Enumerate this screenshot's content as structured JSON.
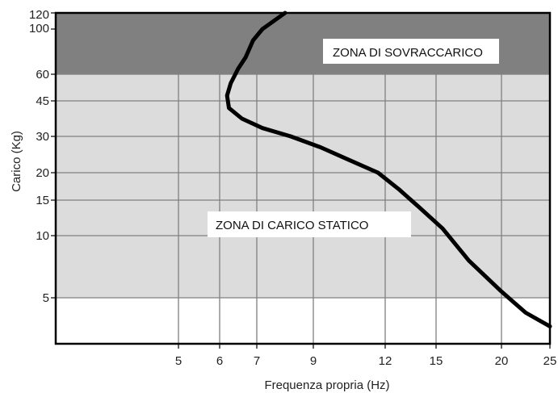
{
  "colors": {
    "background": "#ffffff",
    "overload_zone": "#808080",
    "static_zone": "#dcdcdc",
    "grid": "#808080",
    "curve": "#000000",
    "label_box": "#ffffff"
  },
  "chart_data": {
    "type": "line",
    "title": "",
    "xlabel": "Frequenza propria (Hz)",
    "ylabel": "Carico (Kg)",
    "x_ticks": [
      5,
      6,
      7,
      9,
      12,
      15,
      20,
      25
    ],
    "y_ticks": [
      5,
      10,
      15,
      20,
      30,
      45,
      60,
      100,
      120
    ],
    "grid": true,
    "zones": [
      {
        "label": "ZONA DI SOVRACCARICO",
        "y_from": 60,
        "y_to": 120,
        "color": "#808080"
      },
      {
        "label": "ZONA DI CARICO STATICO",
        "y_from": 5,
        "y_to": 60,
        "color": "#dcdcdc"
      }
    ],
    "series": [
      {
        "points": [
          [
            8.0,
            120
          ],
          [
            7.6,
            110
          ],
          [
            7.2,
            100
          ],
          [
            6.9,
            90
          ],
          [
            6.7,
            75
          ],
          [
            6.5,
            65
          ],
          [
            6.3,
            55
          ],
          [
            6.2,
            48
          ],
          [
            6.25,
            42
          ],
          [
            6.6,
            37.5
          ],
          [
            7.2,
            33.5
          ],
          [
            8.2,
            30
          ],
          [
            9.3,
            27
          ],
          [
            10.5,
            23.5
          ],
          [
            11.7,
            20
          ],
          [
            12.8,
            17
          ],
          [
            14.0,
            14
          ],
          [
            15.5,
            11
          ],
          [
            17.5,
            8
          ],
          [
            20.0,
            5.5
          ],
          [
            22.5,
            3.8
          ],
          [
            25.0,
            2.7
          ]
        ]
      }
    ]
  }
}
